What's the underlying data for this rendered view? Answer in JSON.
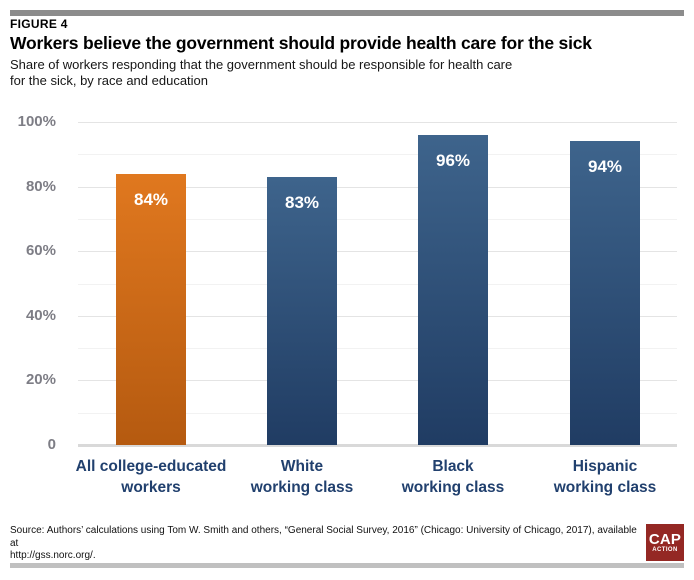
{
  "header": {
    "figure_label": "FIGURE 4",
    "title": "Workers believe the government should provide health care for the sick",
    "subtitle": "Share of workers responding that the government should be responsible for health care\nfor the sick, by race and education"
  },
  "chart_data": {
    "type": "bar",
    "title": "Workers believe the government should provide health care for the sick",
    "categories": [
      "All college-educated\nworkers",
      "White\nworking class",
      "Black\nworking class",
      "Hispanic\nworking class"
    ],
    "values": [
      84,
      83,
      96,
      94
    ],
    "value_labels": [
      "84%",
      "83%",
      "96%",
      "94%"
    ],
    "xlabel": "",
    "ylabel": "",
    "ylim": [
      0,
      100
    ],
    "yticks": [
      0,
      20,
      40,
      60,
      80,
      100
    ],
    "ytick_labels": [
      "0",
      "20%",
      "40%",
      "60%",
      "80%",
      "100%"
    ],
    "minor_gridlines": [
      10,
      30,
      50,
      70,
      90
    ],
    "grid": true,
    "legend_position": "none",
    "bar_styles": [
      "highlight",
      "default",
      "default",
      "default"
    ],
    "colors": {
      "highlight_bar_top": "#e0781f",
      "highlight_bar_bottom": "#b55a10",
      "default_bar_top": "#3e648c",
      "default_bar_bottom": "#203c63",
      "category_label": "#21406e",
      "tick_label": "#7d7d85",
      "gridline_major": "#e4e4e4",
      "gridline_minor": "#f2f2f2",
      "baseline": "#d9d9d9",
      "value_label": "#ffffff"
    }
  },
  "footer": {
    "source": "Source: Authors’ calculations using Tom W. Smith and others, “General Social Survey, 2016” (Chicago: University of Chicago, 2017), available at\nhttp://gss.norc.org/.",
    "logo": {
      "line1": "CAP",
      "line2": "ACTION",
      "background": "#942824",
      "text_color": "#ffffff"
    }
  },
  "rules": {
    "top_color": "#8c8c8c",
    "bottom_color": "#c0c0c0"
  }
}
